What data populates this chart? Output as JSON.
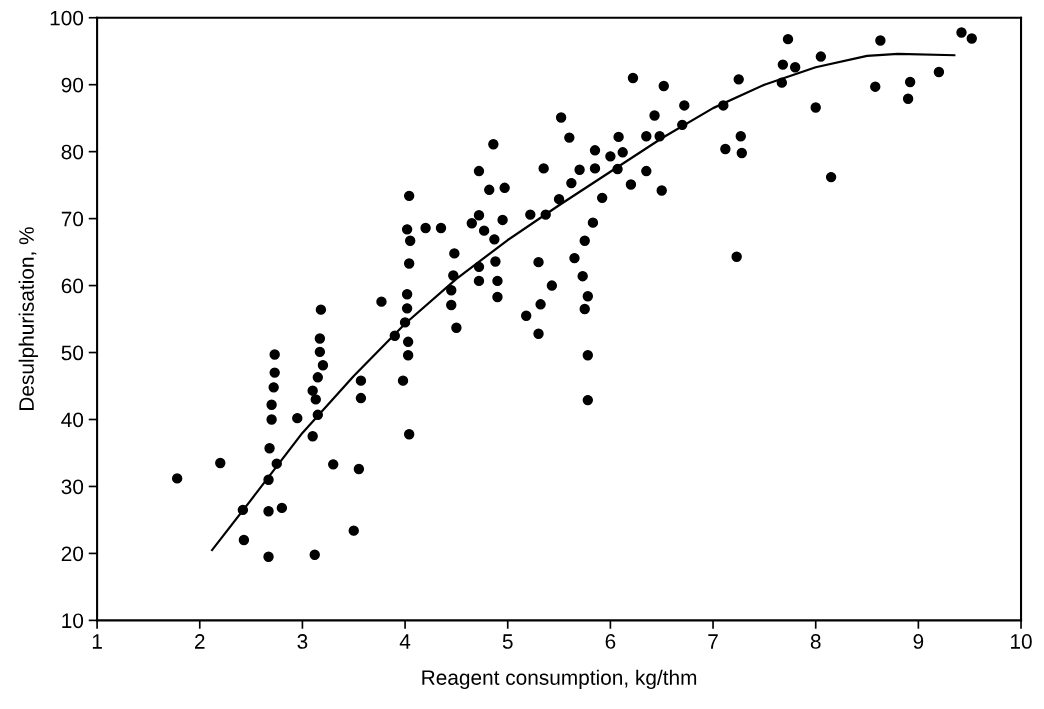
{
  "chart_data": {
    "type": "scatter",
    "xlabel": "Reagent consumption, kg/thm",
    "ylabel": "Desulphurisation, %",
    "xlim": [
      1,
      10
    ],
    "ylim": [
      10,
      100
    ],
    "xticks": [
      1,
      2,
      3,
      4,
      5,
      6,
      7,
      8,
      9,
      10
    ],
    "yticks": [
      10,
      20,
      30,
      40,
      50,
      60,
      70,
      80,
      90,
      100
    ],
    "grid": false,
    "series": [
      {
        "marker": "circle",
        "color": "#000000",
        "x": [
          1.78,
          2.2,
          2.42,
          2.43,
          2.67,
          2.67,
          2.67,
          2.68,
          2.7,
          2.7,
          2.72,
          2.73,
          2.73,
          2.75,
          2.8,
          2.95,
          3.1,
          3.1,
          3.12,
          3.13,
          3.15,
          3.15,
          3.17,
          3.17,
          3.18,
          3.2,
          3.3,
          3.5,
          3.55,
          3.57,
          3.57,
          3.77,
          3.9,
          3.98,
          4.0,
          4.02,
          4.02,
          4.02,
          4.03,
          4.03,
          4.04,
          4.04,
          4.05,
          4.04,
          4.2,
          4.35,
          4.45,
          4.45,
          4.47,
          4.48,
          4.5,
          4.65,
          4.72,
          4.72,
          4.72,
          4.72,
          4.77,
          4.82,
          4.86,
          4.87,
          4.88,
          4.9,
          4.9,
          4.95,
          4.97,
          5.18,
          5.22,
          5.3,
          5.3,
          5.32,
          5.35,
          5.37,
          5.43,
          5.5,
          5.52,
          5.6,
          5.62,
          5.65,
          5.7,
          5.75,
          5.73,
          5.75,
          5.78,
          5.78,
          5.78,
          5.83,
          5.85,
          5.85,
          5.92,
          6.0,
          6.07,
          6.08,
          6.12,
          6.2,
          6.22,
          6.35,
          6.35,
          6.43,
          6.48,
          6.5,
          6.52,
          6.7,
          6.72,
          7.1,
          7.12,
          7.23,
          7.25,
          7.27,
          7.28,
          7.67,
          7.68,
          7.73,
          7.8,
          8.0,
          8.05,
          8.15,
          8.58,
          8.63,
          8.9,
          8.92,
          9.2,
          9.42,
          9.52
        ],
        "values": [
          31.2,
          33.5,
          26.5,
          22,
          19.5,
          26.3,
          31,
          35.7,
          40,
          42.2,
          44.8,
          47,
          49.7,
          33.4,
          26.8,
          40.2,
          44.3,
          37.5,
          19.8,
          43,
          46.3,
          40.7,
          52.1,
          50.1,
          56.4,
          48.1,
          33.3,
          23.4,
          32.6,
          43.2,
          45.8,
          57.6,
          52.5,
          45.8,
          54.5,
          56.6,
          58.7,
          68.4,
          49.6,
          51.6,
          63.3,
          73.4,
          66.7,
          37.8,
          68.6,
          68.6,
          57.1,
          59.3,
          61.5,
          64.8,
          53.7,
          69.3,
          77.1,
          70.5,
          62.8,
          60.7,
          68.2,
          74.3,
          81.1,
          66.9,
          63.6,
          60.7,
          58.3,
          69.8,
          74.6,
          55.5,
          70.6,
          63.5,
          52.8,
          57.2,
          77.5,
          70.6,
          60.0,
          72.9,
          85.1,
          82.1,
          75.3,
          64.1,
          77.3,
          66.7,
          61.4,
          56.5,
          58.4,
          49.6,
          42.9,
          69.4,
          80.2,
          77.5,
          73.1,
          79.3,
          77.4,
          82.2,
          79.9,
          75.1,
          91.0,
          82.3,
          77.1,
          85.4,
          82.3,
          74.2,
          89.8,
          84.0,
          86.9,
          86.9,
          80.4,
          64.3,
          90.8,
          82.3,
          79.8,
          90.3,
          93.0,
          96.8,
          92.6,
          86.6,
          94.2,
          76.2,
          89.7,
          96.6,
          87.9,
          90.4,
          91.9,
          97.8,
          96.9
        ]
      },
      {
        "type": "line",
        "marker": "none",
        "color": "#000000",
        "x": [
          2.12,
          2.5,
          3,
          3.5,
          4,
          4.5,
          5,
          5.5,
          6,
          6.5,
          7,
          7.5,
          8,
          8.5,
          8.8,
          9.35
        ],
        "values": [
          20.5,
          28,
          38,
          46.5,
          54.3,
          61,
          66.8,
          72,
          77,
          82,
          86.5,
          90,
          92.6,
          94.3,
          94.6,
          94.4
        ]
      }
    ]
  }
}
